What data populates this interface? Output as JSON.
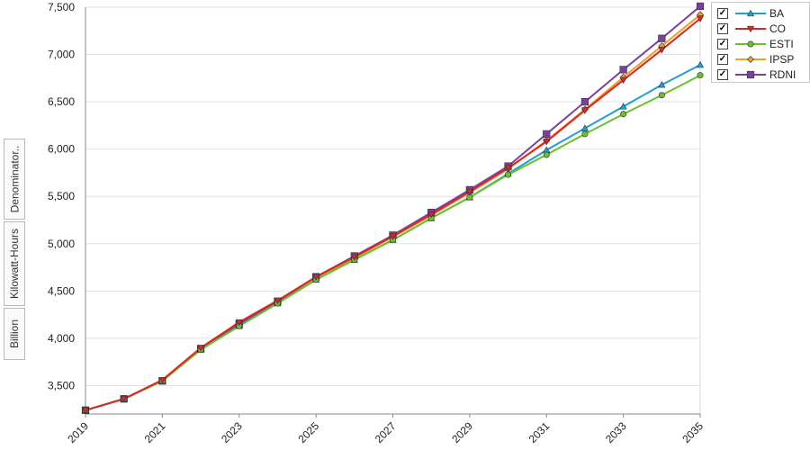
{
  "chart_data": {
    "type": "line",
    "x": [
      2019,
      2020,
      2021,
      2022,
      2023,
      2024,
      2025,
      2026,
      2027,
      2028,
      2029,
      2030,
      2031,
      2032,
      2033,
      2034,
      2035
    ],
    "xticks": [
      "2019",
      "2021",
      "2023",
      "2025",
      "2027",
      "2029",
      "2031",
      "2033",
      "2035"
    ],
    "yticks": [
      "3,500",
      "4,000",
      "4,500",
      "5,000",
      "5,500",
      "6,000",
      "6,500",
      "7,000",
      "7,500"
    ],
    "ylim": [
      3200,
      7500
    ],
    "xlim": [
      2019,
      2035
    ],
    "ylabel_parts": [
      "Billion",
      "Kilowatt-Hours",
      "Denominator.."
    ],
    "grid": "horizontal",
    "legend_placement": "top-right",
    "series": [
      {
        "name": "BA",
        "color": "#1f9fd6",
        "marker": "triangle-up",
        "values": [
          3240,
          3360,
          3550,
          3880,
          4130,
          4370,
          4620,
          4830,
          5040,
          5270,
          5490,
          5740,
          5990,
          6220,
          6450,
          6680,
          6890
        ]
      },
      {
        "name": "CO",
        "color": "#e02424",
        "marker": "triangle-down",
        "values": [
          3240,
          3360,
          3560,
          3900,
          4170,
          4400,
          4650,
          4860,
          5080,
          5310,
          5550,
          5800,
          6080,
          6410,
          6730,
          7050,
          7380
        ]
      },
      {
        "name": "ESTI",
        "color": "#6cc02a",
        "marker": "circle",
        "values": [
          3240,
          3360,
          3550,
          3880,
          4130,
          4370,
          4620,
          4830,
          5040,
          5270,
          5490,
          5730,
          5940,
          6160,
          6370,
          6570,
          6780
        ]
      },
      {
        "name": "IPSP",
        "color": "#f0a020",
        "marker": "diamond",
        "values": [
          3240,
          3360,
          3550,
          3880,
          4140,
          4380,
          4640,
          4850,
          5070,
          5300,
          5540,
          5790,
          6090,
          6420,
          6760,
          7090,
          7420
        ]
      },
      {
        "name": "RDNI",
        "color": "#7b3fa0",
        "marker": "square",
        "values": [
          3240,
          3360,
          3550,
          3890,
          4150,
          4390,
          4650,
          4870,
          5090,
          5330,
          5570,
          5820,
          6160,
          6500,
          6840,
          7170,
          7510
        ]
      }
    ]
  }
}
